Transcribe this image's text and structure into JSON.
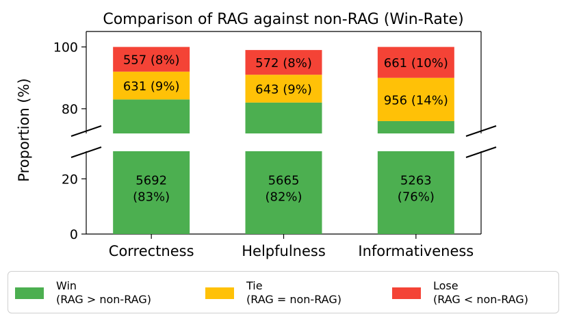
{
  "chart_data": {
    "type": "bar",
    "stacked": true,
    "broken_y_axis": true,
    "title": "Comparison of RAG against non-RAG (Win-Rate)",
    "xlabel": "",
    "ylabel": "Proportion (%)",
    "categories": [
      "Correctness",
      "Helpfulness",
      "Informativeness"
    ],
    "ylim_lower": [
      0,
      30
    ],
    "ylim_upper": [
      72,
      105
    ],
    "yticks": [
      0,
      20,
      80,
      100
    ],
    "ytick_labels": [
      "0",
      "20",
      "80",
      "100"
    ],
    "series": [
      {
        "name": "Win",
        "values": [
          83,
          82,
          76
        ],
        "counts": [
          5692,
          5665,
          5263
        ],
        "labels": [
          [
            "5692",
            "(83%)"
          ],
          [
            "5665",
            "(82%)"
          ],
          [
            "5263",
            "(76%)"
          ]
        ],
        "color": "#4caf50"
      },
      {
        "name": "Tie",
        "values": [
          9,
          9,
          14
        ],
        "counts": [
          631,
          643,
          956
        ],
        "labels": [
          "631 (9%)",
          "643 (9%)",
          "956 (14%)"
        ],
        "color": "#ffc107"
      },
      {
        "name": "Lose",
        "values": [
          8,
          8,
          10
        ],
        "counts": [
          557,
          572,
          661
        ],
        "labels": [
          "557 (8%)",
          "572 (8%)",
          "661 (10%)"
        ],
        "color": "#f44336"
      }
    ],
    "legend": {
      "placement": "bottom",
      "items": [
        {
          "name": "Win",
          "desc": "(RAG > non-RAG)",
          "color": "#4caf50"
        },
        {
          "name": "Tie",
          "desc": "(RAG = non-RAG)",
          "color": "#ffc107"
        },
        {
          "name": "Lose",
          "desc": "(RAG < non-RAG)",
          "color": "#f44336"
        }
      ]
    }
  }
}
